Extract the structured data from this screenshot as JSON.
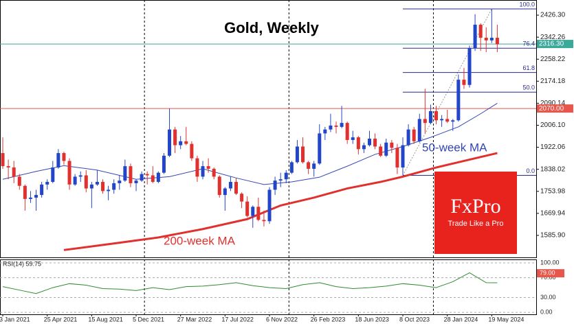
{
  "chart_data": [
    {
      "type": "candlestick",
      "title": "Gold, Weekly",
      "xlim": [
        -0.5,
        96
      ],
      "period_separators": [
        25.5,
        51.5,
        77.5
      ],
      "ylim": [
        1502,
        2471
      ],
      "yticks": [
        {
          "value": 1585.9,
          "label": "1585.90"
        },
        1669.94,
        1753.98,
        1838.02,
        1922.06,
        {
          "value": 2006.1,
          "label": "2006.10"
        },
        2090.14,
        2174.18,
        2258.22,
        2342.26,
        {
          "value": 2426.3,
          "label": "2426.30"
        }
      ],
      "up_color": "#2346c8",
      "down_color": "#e0312f",
      "ohlc": [
        [
          1900,
          1960,
          1840,
          1850
        ],
        [
          1850,
          1875,
          1800,
          1845
        ],
        [
          1845,
          1870,
          1785,
          1810
        ],
        [
          1810,
          1820,
          1760,
          1775
        ],
        [
          1775,
          1780,
          1680,
          1725
        ],
        [
          1725,
          1755,
          1710,
          1730
        ],
        [
          1730,
          1760,
          1680,
          1740
        ],
        [
          1740,
          1790,
          1730,
          1780
        ],
        [
          1780,
          1800,
          1760,
          1790
        ],
        [
          1790,
          1870,
          1785,
          1845
        ],
        [
          1845,
          1915,
          1840,
          1900
        ],
        [
          1900,
          1905,
          1855,
          1870
        ],
        [
          1870,
          1880,
          1760,
          1780
        ],
        [
          1780,
          1820,
          1775,
          1810
        ],
        [
          1810,
          1830,
          1790,
          1815
        ],
        [
          1815,
          1835,
          1750,
          1765
        ],
        [
          1765,
          1790,
          1690,
          1780
        ],
        [
          1780,
          1835,
          1775,
          1790
        ],
        [
          1790,
          1800,
          1745,
          1755
        ],
        [
          1755,
          1775,
          1720,
          1760
        ],
        [
          1760,
          1800,
          1745,
          1785
        ],
        [
          1785,
          1815,
          1760,
          1795
        ],
        [
          1795,
          1875,
          1790,
          1850
        ],
        [
          1850,
          1860,
          1770,
          1785
        ],
        [
          1785,
          1800,
          1755,
          1795
        ],
        [
          1795,
          1830,
          1790,
          1820
        ],
        [
          1820,
          1830,
          1780,
          1815
        ],
        [
          1815,
          1850,
          1785,
          1790
        ],
        [
          1790,
          1830,
          1785,
          1825
        ],
        [
          1825,
          1900,
          1820,
          1890
        ],
        [
          1890,
          2070,
          1885,
          1990
        ],
        [
          1990,
          2000,
          1900,
          1930
        ],
        [
          1930,
          1965,
          1915,
          1945
        ],
        [
          1945,
          2000,
          1930,
          1935
        ],
        [
          1935,
          1945,
          1870,
          1880
        ],
        [
          1880,
          1890,
          1790,
          1810
        ],
        [
          1810,
          1870,
          1800,
          1850
        ],
        [
          1850,
          1880,
          1825,
          1840
        ],
        [
          1840,
          1845,
          1800,
          1810
        ],
        [
          1810,
          1815,
          1730,
          1740
        ],
        [
          1740,
          1770,
          1680,
          1765
        ],
        [
          1765,
          1810,
          1755,
          1790
        ],
        [
          1790,
          1805,
          1740,
          1745
        ],
        [
          1745,
          1750,
          1690,
          1715
        ],
        [
          1715,
          1735,
          1655,
          1660
        ],
        [
          1660,
          1700,
          1615,
          1695
        ],
        [
          1695,
          1730,
          1640,
          1645
        ],
        [
          1645,
          1680,
          1620,
          1640
        ],
        [
          1640,
          1770,
          1630,
          1760
        ],
        [
          1760,
          1810,
          1740,
          1795
        ],
        [
          1795,
          1825,
          1770,
          1800
        ],
        [
          1800,
          1835,
          1785,
          1825
        ],
        [
          1825,
          1870,
          1820,
          1865
        ],
        [
          1865,
          1950,
          1860,
          1925
        ],
        [
          1925,
          1960,
          1860,
          1865
        ],
        [
          1865,
          1870,
          1820,
          1840
        ],
        [
          1840,
          1870,
          1810,
          1860
        ],
        [
          1860,
          2010,
          1855,
          1975
        ],
        [
          1975,
          2000,
          1950,
          1990
        ],
        [
          1990,
          2050,
          1980,
          2005
        ],
        [
          2005,
          2020,
          1975,
          2000
        ],
        [
          2000,
          2080,
          1995,
          2015
        ],
        [
          2015,
          2020,
          1935,
          1950
        ],
        [
          1950,
          1985,
          1935,
          1960
        ],
        [
          1960,
          1965,
          1895,
          1915
        ],
        [
          1915,
          1940,
          1900,
          1930
        ],
        [
          1930,
          1985,
          1925,
          1955
        ],
        [
          1955,
          1975,
          1915,
          1925
        ],
        [
          1925,
          1935,
          1885,
          1890
        ],
        [
          1890,
          1955,
          1885,
          1940
        ],
        [
          1940,
          1950,
          1900,
          1920
        ],
        [
          1920,
          1935,
          1820,
          1845
        ],
        [
          1845,
          1960,
          1815,
          1930
        ],
        [
          1930,
          2010,
          1925,
          1990
        ],
        [
          1990,
          2000,
          1935,
          1945
        ],
        [
          1945,
          2050,
          1940,
          2030
        ],
        [
          2030,
          2145,
          1975,
          2015
        ],
        [
          2015,
          2085,
          2010,
          2060
        ],
        [
          2060,
          2080,
          2010,
          2025
        ],
        [
          2025,
          2045,
          2000,
          2030
        ],
        [
          2030,
          2065,
          2015,
          2020
        ],
        [
          2020,
          2030,
          1985,
          2025
        ],
        [
          2025,
          2200,
          2020,
          2180
        ],
        [
          2180,
          2225,
          2145,
          2160
        ],
        [
          2160,
          2310,
          2150,
          2300
        ],
        [
          2300,
          2430,
          2290,
          2390
        ],
        [
          2390,
          2395,
          2290,
          2340
        ],
        [
          2340,
          2380,
          2285,
          2330
        ],
        [
          2330,
          2450,
          2320,
          2340
        ],
        [
          2340,
          2390,
          2285,
          2315
        ]
      ],
      "lines": [
        {
          "name": "50-week MA",
          "color": "#3246b4",
          "x": [
            0,
            6,
            11,
            17,
            24,
            30,
            36,
            42,
            47,
            52,
            57,
            62,
            67,
            72,
            77,
            82,
            86,
            89
          ],
          "values": [
            1800,
            1830,
            1852,
            1835,
            1800,
            1810,
            1840,
            1805,
            1780,
            1790,
            1808,
            1850,
            1895,
            1925,
            1960,
            2000,
            2050,
            2090
          ]
        },
        {
          "name": "200-week MA",
          "color": "#e0312f",
          "x": [
            11,
            20,
            28,
            36,
            44,
            50,
            56,
            62,
            68,
            72,
            78,
            84,
            89
          ],
          "values": [
            1530,
            1555,
            1578,
            1610,
            1648,
            1700,
            1730,
            1765,
            1790,
            1810,
            1845,
            1875,
            1900
          ]
        }
      ],
      "hlines": [
        {
          "value": 2316.3,
          "label": "2316.30",
          "color": "#3aa99a"
        },
        {
          "value": 2070,
          "label": "2070.00",
          "color": "#e8574c"
        }
      ],
      "fib": {
        "x": [
          72,
          88
        ],
        "range": [
          1815,
          2450
        ],
        "color": "#26288c",
        "levels": [
          {
            "value": 0,
            "label": "0.0"
          },
          {
            "value": 50,
            "label": "50.0"
          },
          61.8,
          76.4,
          {
            "value": 100,
            "label": "100.0"
          }
        ]
      }
    },
    {
      "type": "line",
      "title": "RSI(14) 59.75",
      "xlim": [
        -0.5,
        96
      ],
      "xticks": [
        {
          "value": 0,
          "label": "3 Jan 2021"
        },
        {
          "value": 8,
          "label": "25 Apr 2021"
        },
        {
          "value": 16,
          "label": "15 Aug 2021"
        },
        {
          "value": 24,
          "label": "5 Dec 2021"
        },
        {
          "value": 32,
          "label": "27 Mar 2022"
        },
        {
          "value": 40,
          "label": "17 Jul 2022"
        },
        {
          "value": 48,
          "label": "6 Nov 2022"
        },
        {
          "value": 56,
          "label": "26 Feb 2023"
        },
        {
          "value": 64,
          "label": "18 Jun 2023"
        },
        {
          "value": 72,
          "label": "8 Oct 2023"
        },
        {
          "value": 80,
          "label": "28 Jan 2024"
        },
        {
          "value": 88,
          "label": "19 May 2024"
        }
      ],
      "ylim": [
        -4,
        107
      ],
      "yticks": [
        {
          "value": 0,
          "label": "0.00"
        },
        {
          "value": 30,
          "label": "30.00"
        },
        {
          "value": 70,
          "label": "70.00"
        },
        {
          "value": 100,
          "label": "100.00"
        }
      ],
      "grid": true,
      "marker": {
        "value": 79,
        "label": "79.00",
        "color": "#e8574c"
      },
      "series": [
        {
          "color": "#2e8b2e",
          "x": [
            0,
            3,
            6,
            9,
            12,
            15,
            18,
            21,
            24,
            27,
            30,
            33,
            36,
            39,
            42,
            45,
            48,
            51,
            54,
            57,
            60,
            63,
            66,
            69,
            72,
            75,
            78,
            81,
            84,
            87,
            89
          ],
          "values": [
            52,
            45,
            38,
            50,
            58,
            55,
            48,
            47,
            44,
            50,
            46,
            52,
            53,
            56,
            60,
            54,
            50,
            48,
            56,
            60,
            52,
            48,
            50,
            53,
            58,
            55,
            50,
            62,
            80,
            60,
            59.75
          ]
        }
      ]
    }
  ],
  "logo": {
    "brand": "FxPro",
    "slogan": "Trade Like a Pro"
  }
}
